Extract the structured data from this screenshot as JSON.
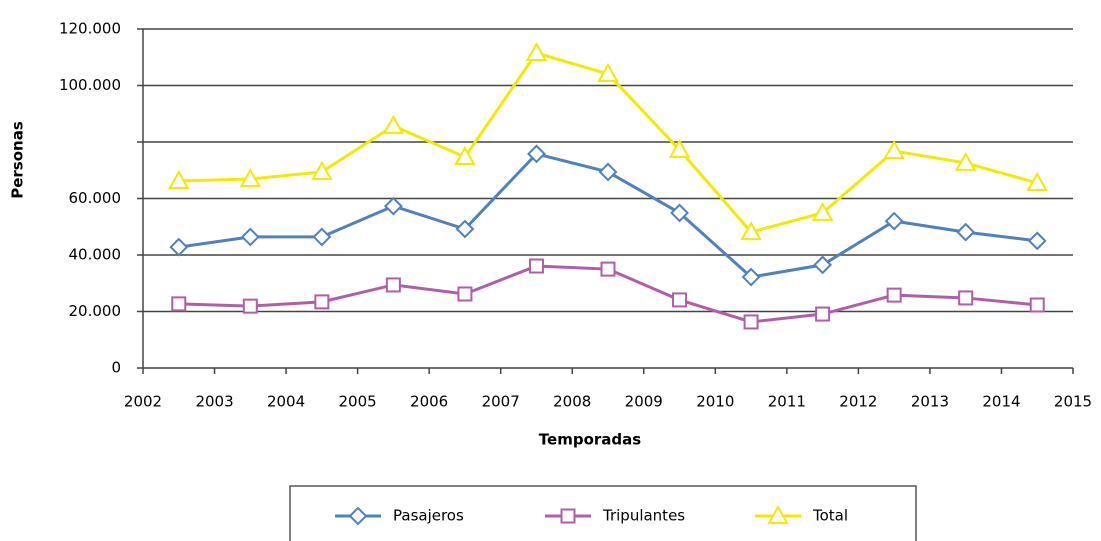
{
  "chart_data": {
    "type": "line",
    "y_label": "Personas",
    "x_label": "Temporadas",
    "x": [
      2002.5,
      2003.5,
      2004.5,
      2005.5,
      2006.5,
      2007.5,
      2008.5,
      2009.5,
      2010.5,
      2011.5,
      2012.5,
      2013.5,
      2014.5
    ],
    "series": [
      {
        "name": "Pasajeros",
        "color": "#4f81bd",
        "marker": "diamond",
        "values": [
          42800,
          46400,
          46400,
          57300,
          49200,
          75800,
          69400,
          54900,
          32200,
          36500,
          52000,
          48100,
          45000
        ]
      },
      {
        "name": "Tripulantes",
        "color": "#b15ea8",
        "marker": "square",
        "values": [
          22700,
          21900,
          23400,
          29400,
          26200,
          36100,
          35000,
          24100,
          16300,
          19100,
          25800,
          24800,
          22300
        ]
      },
      {
        "name": "Total",
        "color": "#f2ea00",
        "marker": "triangle",
        "values": [
          66200,
          66900,
          69400,
          85700,
          74700,
          111500,
          104100,
          77200,
          48100,
          54900,
          76800,
          72600,
          65500
        ]
      }
    ],
    "xlim": [
      2002,
      2015
    ],
    "xticks": [
      2002,
      2003,
      2004,
      2005,
      2006,
      2007,
      2008,
      2009,
      2010,
      2011,
      2012,
      2013,
      2014,
      2015
    ],
    "ylim": [
      0,
      120000
    ],
    "yticks": [
      0,
      {
        "value": 20000,
        "label": "20.000"
      },
      {
        "value": 40000,
        "label": "40.000"
      },
      {
        "value": 60000,
        "label": "60.000"
      },
      {
        "value": 80000
      },
      {
        "value": 100000,
        "label": "100.000"
      },
      {
        "value": 120000,
        "label": "120.000"
      }
    ],
    "grid": true,
    "legend": "bottom"
  }
}
